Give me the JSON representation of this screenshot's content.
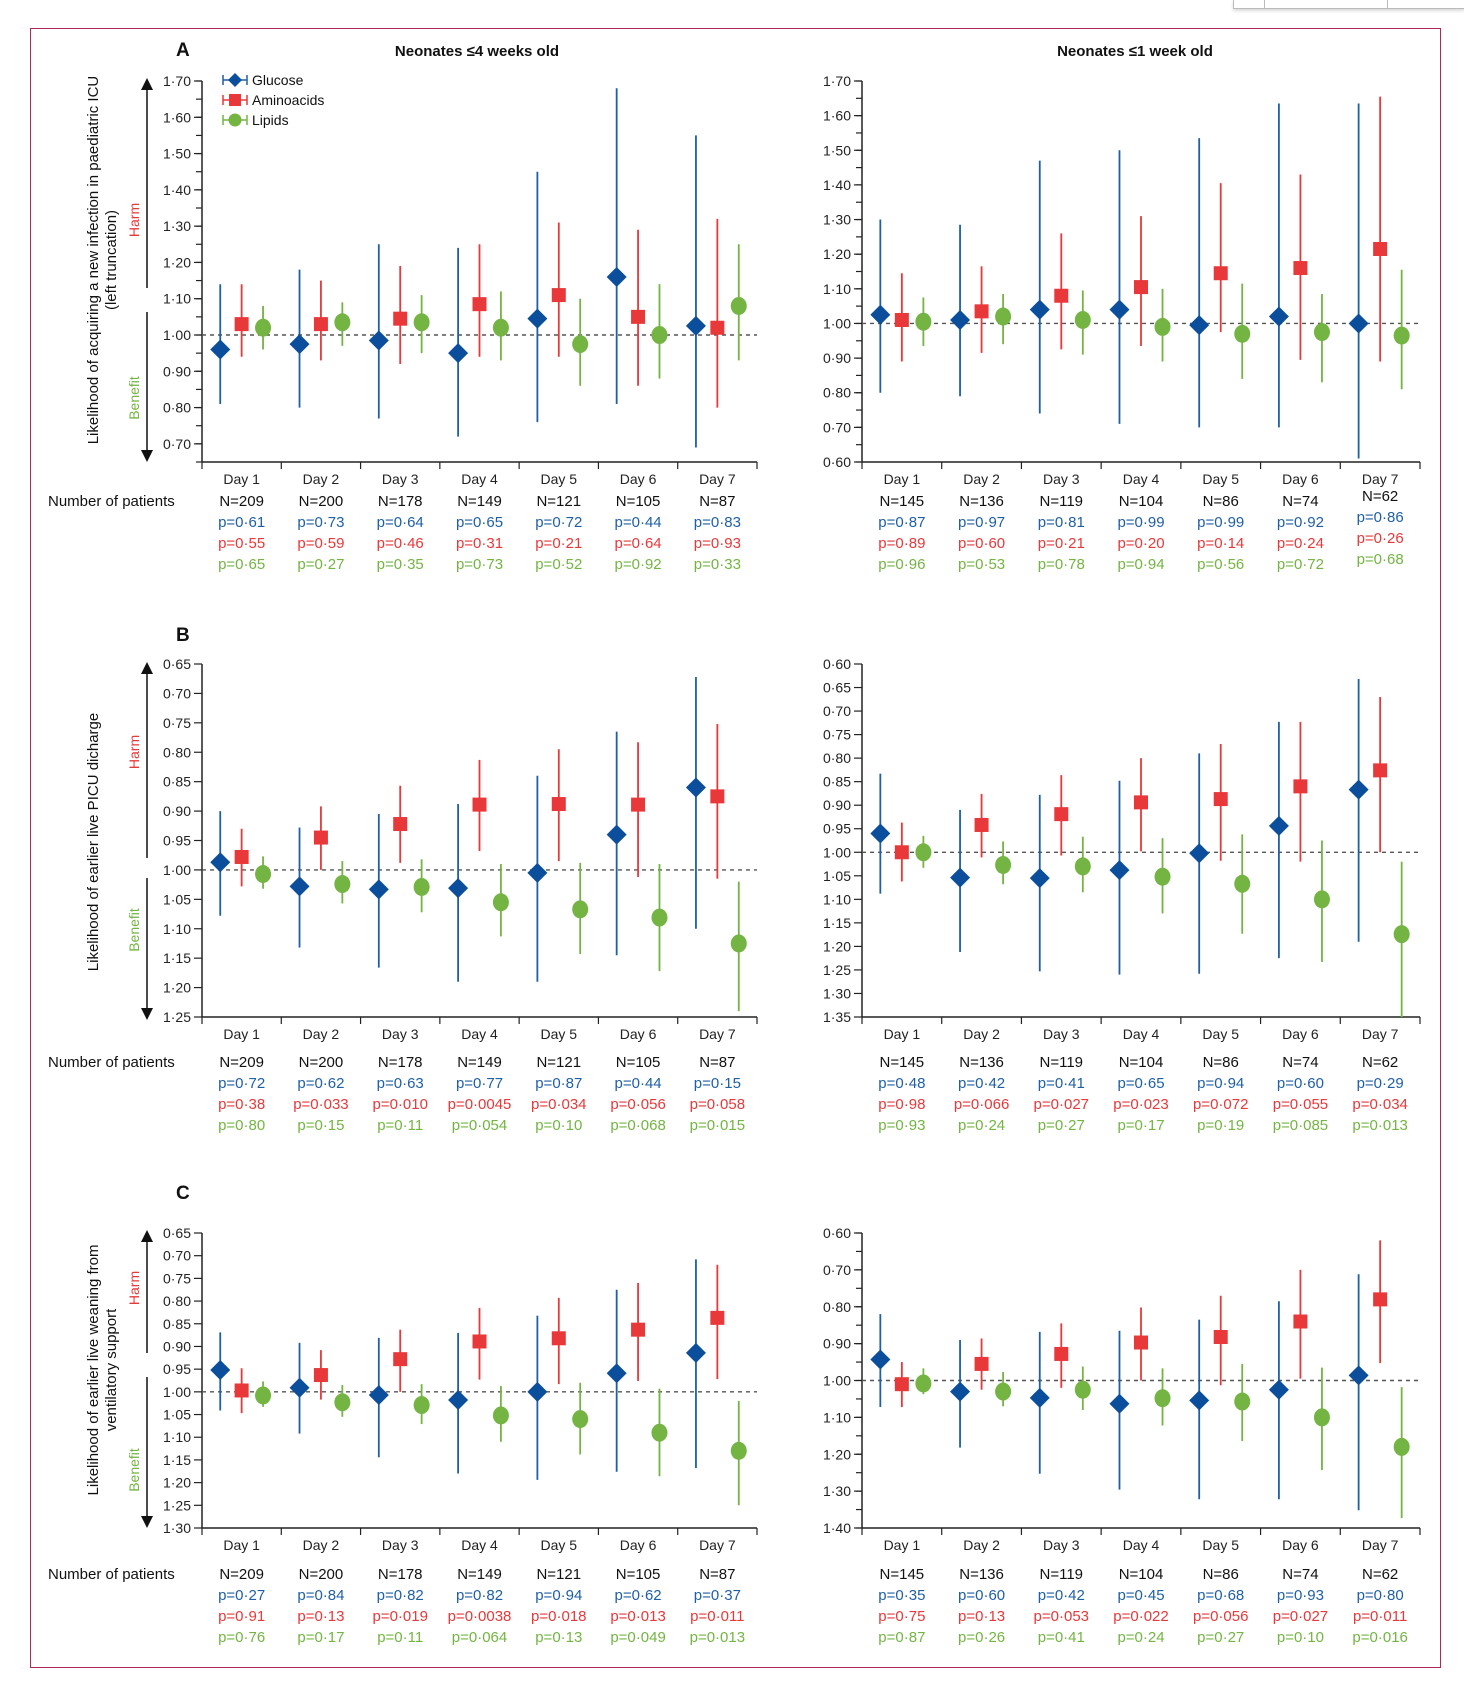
{
  "figure": {
    "series_legend": [
      {
        "name": "Glucose",
        "color": "#0b4f9c",
        "marker": "diamond"
      },
      {
        "name": "Aminoacids",
        "color": "#e8383a",
        "marker": "square"
      },
      {
        "name": "Lipids",
        "color": "#73b442",
        "marker": "circle"
      }
    ],
    "column_titles": [
      "Neonates ≤4 weeks old",
      "Neonates ≤1 week old"
    ],
    "row_label": "Number of patients",
    "harm_label": "Harm",
    "benefit_label": "Benefit",
    "reference_line": 1.0
  },
  "chart_data": [
    {
      "id": "A-left",
      "panel": "A",
      "type": "scatter",
      "title": "Neonates ≤4 weeks old",
      "ylabel": "Likelihood of acquiring a new infection in paediatric ICU (left truncation)",
      "ylim": [
        0.65,
        1.7
      ],
      "inverted": false,
      "yticks": [
        0.7,
        0.8,
        0.9,
        1.0,
        1.1,
        1.2,
        1.3,
        1.4,
        1.5,
        1.6,
        1.7
      ],
      "ytick_labels": [
        "0·70",
        "0·80",
        "0·90",
        "1·00",
        "1·10",
        "1·20",
        "1·30",
        "1·40",
        "1·50",
        "1·60",
        "1·70"
      ],
      "minor_step": 0.05,
      "categories": [
        "Day 1",
        "Day 2",
        "Day 3",
        "Day 4",
        "Day 5",
        "Day 6",
        "Day 7"
      ],
      "series": [
        {
          "name": "Glucose",
          "values": [
            0.96,
            0.975,
            0.985,
            0.95,
            1.045,
            1.16,
            1.025
          ],
          "lower": [
            0.81,
            0.8,
            0.77,
            0.72,
            0.76,
            0.81,
            0.69
          ],
          "upper": [
            1.14,
            1.18,
            1.25,
            1.24,
            1.45,
            1.68,
            1.55
          ]
        },
        {
          "name": "Aminoacids",
          "values": [
            1.03,
            1.03,
            1.045,
            1.085,
            1.11,
            1.05,
            1.02
          ],
          "lower": [
            0.94,
            0.93,
            0.92,
            0.94,
            0.94,
            0.86,
            0.8
          ],
          "upper": [
            1.14,
            1.15,
            1.19,
            1.25,
            1.31,
            1.29,
            1.32
          ]
        },
        {
          "name": "Lipids",
          "values": [
            1.02,
            1.035,
            1.035,
            1.02,
            0.975,
            1.0,
            1.08
          ],
          "lower": [
            0.96,
            0.97,
            0.95,
            0.93,
            0.86,
            0.88,
            0.93
          ],
          "upper": [
            1.08,
            1.09,
            1.11,
            1.12,
            1.1,
            1.14,
            1.25
          ]
        }
      ],
      "n": [
        "N=209",
        "N=200",
        "N=178",
        "N=149",
        "N=121",
        "N=105",
        "N=87"
      ],
      "p_glucose": [
        "p=0·61",
        "p=0·73",
        "p=0·64",
        "p=0·65",
        "p=0·72",
        "p=0·44",
        "p=0·83"
      ],
      "p_aminoacids": [
        "p=0·55",
        "p=0·59",
        "p=0·46",
        "p=0·31",
        "p=0·21",
        "p=0·64",
        "p=0·93"
      ],
      "p_lipids": [
        "p=0·65",
        "p=0·27",
        "p=0·35",
        "p=0·73",
        "p=0·52",
        "p=0·92",
        "p=0·33"
      ]
    },
    {
      "id": "A-right",
      "panel": "A",
      "type": "scatter",
      "title": "Neonates ≤1 week old",
      "ylim": [
        0.6,
        1.7
      ],
      "inverted": false,
      "yticks": [
        0.6,
        0.7,
        0.8,
        0.9,
        1.0,
        1.1,
        1.2,
        1.3,
        1.4,
        1.5,
        1.6,
        1.7
      ],
      "ytick_labels": [
        "0·60",
        "0·70",
        "0·80",
        "0·90",
        "1·00",
        "1·10",
        "1·20",
        "1·30",
        "1·40",
        "1·50",
        "1·60",
        "1·70"
      ],
      "minor_step": 0.05,
      "categories": [
        "Day 1",
        "Day 2",
        "Day 3",
        "Day 4",
        "Day 5",
        "Day 6",
        "Day 7"
      ],
      "series": [
        {
          "name": "Glucose",
          "values": [
            1.025,
            1.01,
            1.04,
            1.04,
            0.995,
            1.02,
            1.0
          ],
          "lower": [
            0.8,
            0.79,
            0.74,
            0.71,
            0.7,
            0.7,
            0.61
          ],
          "upper": [
            1.3,
            1.285,
            1.47,
            1.5,
            1.535,
            1.635,
            1.635
          ]
        },
        {
          "name": "Aminoacids",
          "values": [
            1.01,
            1.035,
            1.08,
            1.105,
            1.145,
            1.16,
            1.215
          ],
          "lower": [
            0.89,
            0.915,
            0.925,
            0.935,
            0.975,
            0.895,
            0.89
          ],
          "upper": [
            1.145,
            1.165,
            1.26,
            1.31,
            1.405,
            1.43,
            1.655
          ]
        },
        {
          "name": "Lipids",
          "values": [
            1.005,
            1.02,
            1.01,
            0.99,
            0.97,
            0.975,
            0.965
          ],
          "lower": [
            0.935,
            0.94,
            0.91,
            0.89,
            0.84,
            0.83,
            0.81
          ],
          "upper": [
            1.075,
            1.085,
            1.095,
            1.1,
            1.115,
            1.085,
            1.155
          ]
        }
      ],
      "n": [
        "N=145",
        "N=136",
        "N=119",
        "N=104",
        "N=86",
        "N=74",
        "N=62"
      ],
      "p_glucose": [
        "p=0·87",
        "p=0·97",
        "p=0·81",
        "p=0·99",
        "p=0·99",
        "p=0·92",
        "p=0·86"
      ],
      "p_aminoacids": [
        "p=0·89",
        "p=0·60",
        "p=0·21",
        "p=0·20",
        "p=0·14",
        "p=0·24",
        "p=0·26"
      ],
      "p_lipids": [
        "p=0·96",
        "p=0·53",
        "p=0·78",
        "p=0·94",
        "p=0·56",
        "p=0·72",
        "p=0·68"
      ]
    },
    {
      "id": "B-left",
      "panel": "B",
      "type": "scatter",
      "ylabel": "Likelihood of earlier live PICU dicharge",
      "ylim": [
        0.65,
        1.25
      ],
      "inverted": true,
      "yticks": [
        0.65,
        0.7,
        0.75,
        0.8,
        0.85,
        0.9,
        0.95,
        1.0,
        1.05,
        1.1,
        1.15,
        1.2,
        1.25
      ],
      "ytick_labels": [
        "0·65",
        "0·70",
        "0·75",
        "0·80",
        "0·85",
        "0·90",
        "0·95",
        "1·00",
        "1·05",
        "1·10",
        "1·15",
        "1·20",
        "1·25"
      ],
      "minor_step": null,
      "categories": [
        "Day 1",
        "Day 2",
        "Day 3",
        "Day 4",
        "Day 5",
        "Day 6",
        "Day 7"
      ],
      "series": [
        {
          "name": "Glucose",
          "values": [
            0.987,
            1.028,
            1.033,
            1.031,
            1.005,
            0.94,
            0.86
          ],
          "lower": [
            1.078,
            1.132,
            1.166,
            1.19,
            1.19,
            1.145,
            1.1
          ],
          "upper": [
            0.9,
            0.928,
            0.905,
            0.888,
            0.84,
            0.765,
            0.672
          ]
        },
        {
          "name": "Aminoacids",
          "values": [
            0.978,
            0.945,
            0.922,
            0.889,
            0.888,
            0.889,
            0.875
          ],
          "lower": [
            1.028,
            1.0,
            0.988,
            0.968,
            0.985,
            1.012,
            1.015
          ],
          "upper": [
            0.93,
            0.892,
            0.857,
            0.813,
            0.795,
            0.783,
            0.752
          ]
        },
        {
          "name": "Lipids",
          "values": [
            1.007,
            1.024,
            1.029,
            1.055,
            1.067,
            1.081,
            1.125
          ],
          "lower": [
            1.032,
            1.057,
            1.072,
            1.113,
            1.143,
            1.172,
            1.24
          ],
          "upper": [
            0.977,
            0.985,
            0.982,
            0.99,
            0.988,
            0.99,
            1.02
          ]
        }
      ],
      "n": [
        "N=209",
        "N=200",
        "N=178",
        "N=149",
        "N=121",
        "N=105",
        "N=87"
      ],
      "p_glucose": [
        "p=0·72",
        "p=0·62",
        "p=0·63",
        "p=0·77",
        "p=0·87",
        "p=0·44",
        "p=0·15"
      ],
      "p_aminoacids": [
        "p=0·38",
        "p=0·033",
        "p=0·010",
        "p=0·0045",
        "p=0·034",
        "p=0·056",
        "p=0·058"
      ],
      "p_lipids": [
        "p=0·80",
        "p=0·15",
        "p=0·11",
        "p=0·054",
        "p=0·10",
        "p=0·068",
        "p=0·015"
      ]
    },
    {
      "id": "B-right",
      "panel": "B",
      "type": "scatter",
      "ylim": [
        0.6,
        1.35
      ],
      "inverted": true,
      "yticks": [
        0.6,
        0.65,
        0.7,
        0.75,
        0.8,
        0.85,
        0.9,
        0.95,
        1.0,
        1.05,
        1.1,
        1.15,
        1.2,
        1.25,
        1.3,
        1.35
      ],
      "ytick_labels": [
        "0·60",
        "0·65",
        "0·70",
        "0·75",
        "0·80",
        "0·85",
        "0·90",
        "0·95",
        "1·00",
        "1·05",
        "1·10",
        "1·15",
        "1·20",
        "1·25",
        "1·30",
        "1·35"
      ],
      "minor_step": null,
      "categories": [
        "Day 1",
        "Day 2",
        "Day 3",
        "Day 4",
        "Day 5",
        "Day 6",
        "Day 7"
      ],
      "series": [
        {
          "name": "Glucose",
          "values": [
            0.96,
            1.054,
            1.055,
            1.038,
            1.002,
            0.944,
            0.867
          ],
          "lower": [
            1.088,
            1.212,
            1.253,
            1.26,
            1.258,
            1.225,
            1.19
          ],
          "upper": [
            0.833,
            0.91,
            0.878,
            0.848,
            0.79,
            0.723,
            0.632
          ]
        },
        {
          "name": "Aminoacids",
          "values": [
            1.0,
            0.942,
            0.919,
            0.894,
            0.887,
            0.86,
            0.826
          ],
          "lower": [
            1.062,
            1.011,
            1.007,
            0.998,
            1.018,
            1.02,
            1.0
          ],
          "upper": [
            0.937,
            0.876,
            0.836,
            0.8,
            0.77,
            0.723,
            0.67
          ]
        },
        {
          "name": "Lipids",
          "values": [
            1.0,
            1.027,
            1.03,
            1.052,
            1.067,
            1.1,
            1.174
          ],
          "lower": [
            1.033,
            1.068,
            1.085,
            1.13,
            1.173,
            1.233,
            1.35
          ],
          "upper": [
            0.965,
            0.977,
            0.967,
            0.97,
            0.962,
            0.975,
            1.02
          ]
        }
      ],
      "n": [
        "N=145",
        "N=136",
        "N=119",
        "N=104",
        "N=86",
        "N=74",
        "N=62"
      ],
      "p_glucose": [
        "p=0·48",
        "p=0·42",
        "p=0·41",
        "p=0·65",
        "p=0·94",
        "p=0·60",
        "p=0·29"
      ],
      "p_aminoacids": [
        "p=0·98",
        "p=0·066",
        "p=0·027",
        "p=0·023",
        "p=0·072",
        "p=0·055",
        "p=0·034"
      ],
      "p_lipids": [
        "p=0·93",
        "p=0·24",
        "p=0·27",
        "p=0·17",
        "p=0·19",
        "p=0·085",
        "p=0·013"
      ]
    },
    {
      "id": "C-left",
      "panel": "C",
      "type": "scatter",
      "ylabel": "Likelihood of  earlier live weaning from ventilatory support",
      "ylim": [
        0.65,
        1.3
      ],
      "inverted": true,
      "yticks": [
        0.65,
        0.7,
        0.75,
        0.8,
        0.85,
        0.9,
        0.95,
        1.0,
        1.05,
        1.1,
        1.15,
        1.2,
        1.25,
        1.3
      ],
      "ytick_labels": [
        "0·65",
        "0·70",
        "0·75",
        "0·80",
        "0·85",
        "0·90",
        "0·95",
        "1·00",
        "1·05",
        "1·10",
        "1·15",
        "1·20",
        "1·25",
        "1·30"
      ],
      "minor_step": null,
      "categories": [
        "Day 1",
        "Day 2",
        "Day 3",
        "Day 4",
        "Day 5",
        "Day 6",
        "Day 7"
      ],
      "series": [
        {
          "name": "Glucose",
          "values": [
            0.952,
            0.991,
            1.007,
            1.018,
            1.0,
            0.959,
            0.914
          ],
          "lower": [
            1.041,
            1.092,
            1.144,
            1.18,
            1.194,
            1.176,
            1.168
          ],
          "upper": [
            0.869,
            0.892,
            0.881,
            0.87,
            0.832,
            0.775,
            0.708
          ]
        },
        {
          "name": "Aminoacids",
          "values": [
            0.997,
            0.963,
            0.928,
            0.889,
            0.882,
            0.863,
            0.837
          ],
          "lower": [
            1.047,
            1.017,
            1.0,
            0.973,
            0.983,
            0.976,
            0.972
          ],
          "upper": [
            0.948,
            0.908,
            0.863,
            0.815,
            0.793,
            0.76,
            0.72
          ]
        },
        {
          "name": "Lipids",
          "values": [
            1.008,
            1.023,
            1.029,
            1.052,
            1.06,
            1.09,
            1.13
          ],
          "lower": [
            1.033,
            1.055,
            1.071,
            1.11,
            1.138,
            1.186,
            1.25
          ],
          "upper": [
            0.977,
            0.985,
            0.983,
            0.987,
            0.98,
            0.993,
            1.02
          ]
        }
      ],
      "n": [
        "N=209",
        "N=200",
        "N=178",
        "N=149",
        "N=121",
        "N=105",
        "N=87"
      ],
      "p_glucose": [
        "p=0·27",
        "p=0·84",
        "p=0·82",
        "p=0·82",
        "p=0·94",
        "p=0·62",
        "p=0·37"
      ],
      "p_aminoacids": [
        "p=0·91",
        "p=0·13",
        "p=0·019",
        "p=0·0038",
        "p=0·018",
        "p=0·013",
        "p=0·011"
      ],
      "p_lipids": [
        "p=0·76",
        "p=0·17",
        "p=0·11",
        "p=0·064",
        "p=0·13",
        "p=0·049",
        "p=0·013"
      ]
    },
    {
      "id": "C-right",
      "panel": "C",
      "type": "scatter",
      "ylim": [
        0.6,
        1.4
      ],
      "inverted": true,
      "yticks": [
        0.6,
        0.7,
        0.8,
        0.9,
        1.0,
        1.1,
        1.2,
        1.3,
        1.4
      ],
      "ytick_labels": [
        "0·60",
        "0·70",
        "0·80",
        "0·90",
        "1·00",
        "1·10",
        "1·20",
        "1·30",
        "1·40"
      ],
      "minor_step": 0.05,
      "categories": [
        "Day 1",
        "Day 2",
        "Day 3",
        "Day 4",
        "Day 5",
        "Day 6",
        "Day 7"
      ],
      "series": [
        {
          "name": "Glucose",
          "values": [
            0.943,
            1.03,
            1.047,
            1.063,
            1.054,
            1.025,
            0.986
          ],
          "lower": [
            1.072,
            1.182,
            1.253,
            1.296,
            1.322,
            1.322,
            1.352
          ],
          "upper": [
            0.82,
            0.89,
            0.868,
            0.865,
            0.835,
            0.785,
            0.712
          ]
        },
        {
          "name": "Aminoacids",
          "values": [
            1.01,
            0.955,
            0.928,
            0.897,
            0.882,
            0.84,
            0.78
          ],
          "lower": [
            1.072,
            1.025,
            1.02,
            1.0,
            1.013,
            0.995,
            0.953
          ],
          "upper": [
            0.95,
            0.886,
            0.845,
            0.802,
            0.77,
            0.7,
            0.62
          ]
        },
        {
          "name": "Lipids",
          "values": [
            1.008,
            1.03,
            1.025,
            1.048,
            1.057,
            1.1,
            1.18
          ],
          "lower": [
            1.037,
            1.07,
            1.08,
            1.122,
            1.164,
            1.243,
            1.373
          ],
          "upper": [
            0.967,
            0.977,
            0.962,
            0.967,
            0.955,
            0.965,
            1.018
          ]
        }
      ],
      "n": [
        "N=145",
        "N=136",
        "N=119",
        "N=104",
        "N=86",
        "N=74",
        "N=62"
      ],
      "p_glucose": [
        "p=0·35",
        "p=0·60",
        "p=0·42",
        "p=0·45",
        "p=0·68",
        "p=0·93",
        "p=0·80"
      ],
      "p_aminoacids": [
        "p=0·75",
        "p=0·13",
        "p=0·053",
        "p=0·022",
        "p=0·056",
        "p=0·027",
        "p=0·011"
      ],
      "p_lipids": [
        "p=0·87",
        "p=0·26",
        "p=0·41",
        "p=0·24",
        "p=0·27",
        "p=0·10",
        "p=0·016"
      ]
    }
  ]
}
